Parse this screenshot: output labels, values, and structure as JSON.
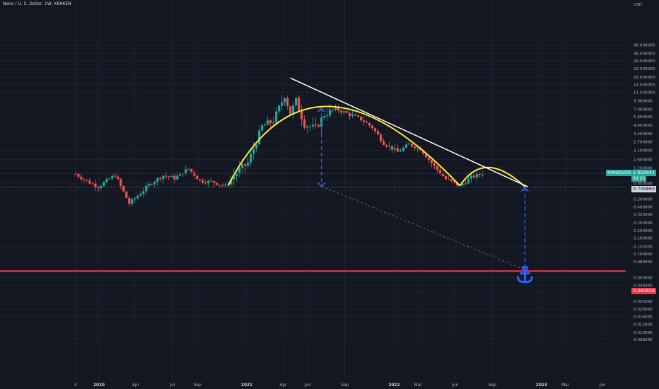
{
  "symbol_title": "Nano / U. S. Dollar, 1W, KRAKEN",
  "currency_label": "USD",
  "colors": {
    "background": "#131722",
    "grid": "#1e222d",
    "up": "#26a69a",
    "down": "#ef5350",
    "arc": "#ffeb3b",
    "trendline": "#ffffff",
    "target_line": "#f23645",
    "projection": "#2962ff"
  },
  "price_labels": {
    "symbol_badge": "NANOUSD",
    "last_price": "1.059941",
    "countdown": "6d 2h",
    "neckline_price": "0.709860",
    "target_price": "0.060828"
  },
  "chart_data": {
    "type": "candlestick",
    "y_scale": "log",
    "ylim": [
      0.008,
      60
    ],
    "y_ticks": [
      "46.000000",
      "36.000000",
      "29.000000",
      "23.000000",
      "18.000000",
      "14.500000",
      "11.500000",
      "9.000000",
      "7.000000",
      "5.600000",
      "4.400000",
      "3.400000",
      "2.700000",
      "2.100000",
      "1.600000",
      "1.250000",
      "0.800000",
      "0.640000",
      "0.500000",
      "0.400000",
      "0.320000",
      "0.250000",
      "0.200000",
      "0.160000",
      "0.125000",
      "0.100000",
      "0.080000",
      "0.050000",
      "0.040000",
      "0.032000",
      "0.025000",
      "0.020000",
      "0.016000",
      "0.012800",
      "0.010000",
      "0.008200"
    ],
    "x_ticks": [
      "4",
      "2020",
      "Apr",
      "Jul",
      "Sep",
      "2021",
      "Apr",
      "Jun",
      "Sep",
      "2022",
      "Mar",
      "Jun",
      "Sep",
      "2023",
      "Mar",
      "Jun"
    ],
    "bold_x_ticks": [
      "2020",
      "2021",
      "2022",
      "2023"
    ],
    "weekly_close_path": [
      [
        "2019-11-04",
        1.05
      ],
      [
        "2019-12-02",
        0.85
      ],
      [
        "2019-12-30",
        0.72
      ],
      [
        "2020-02-10",
        1.02
      ],
      [
        "2020-03-16",
        0.44
      ],
      [
        "2020-04-13",
        0.6
      ],
      [
        "2020-05-11",
        0.82
      ],
      [
        "2020-06-08",
        1.0
      ],
      [
        "2020-07-06",
        0.93
      ],
      [
        "2020-08-10",
        1.22
      ],
      [
        "2020-09-07",
        0.86
      ],
      [
        "2020-10-12",
        0.82
      ],
      [
        "2020-11-09",
        0.73
      ],
      [
        "2020-12-07",
        1.1
      ],
      [
        "2021-01-04",
        1.45
      ],
      [
        "2021-02-08",
        4.2
      ],
      [
        "2021-03-08",
        5.0
      ],
      [
        "2021-04-05",
        10.5
      ],
      [
        "2021-04-19",
        6.2
      ],
      [
        "2021-05-03",
        9.0
      ],
      [
        "2021-05-24",
        4.5
      ],
      [
        "2021-06-21",
        4.0
      ],
      [
        "2021-07-12",
        6.0
      ],
      [
        "2021-08-09",
        7.1
      ],
      [
        "2021-09-06",
        6.2
      ],
      [
        "2021-10-11",
        5.2
      ],
      [
        "2021-11-08",
        4.1
      ],
      [
        "2021-12-06",
        2.6
      ],
      [
        "2022-01-10",
        2.0
      ],
      [
        "2022-02-07",
        2.5
      ],
      [
        "2022-03-07",
        2.2
      ],
      [
        "2022-04-11",
        1.3
      ],
      [
        "2022-05-09",
        0.9
      ],
      [
        "2022-06-13",
        0.74
      ],
      [
        "2022-07-11",
        0.95
      ],
      [
        "2022-08-08",
        1.07
      ]
    ],
    "levels": {
      "last_price": 1.059941,
      "neckline": 0.70986,
      "target": 0.060828
    },
    "annotations": [
      {
        "type": "rounded_top_arc",
        "from": [
          "2020-11-16",
          0.75
        ],
        "to": [
          "2022-06-13",
          0.74
        ],
        "peak": [
          "2021-07-19",
          7.6
        ]
      },
      {
        "type": "small_arc",
        "from": [
          "2022-06-13",
          0.74
        ],
        "to": [
          "2022-11-21",
          0.72
        ],
        "peak": [
          "2022-08-22",
          1.27
        ]
      },
      {
        "type": "descending_trendline",
        "from": [
          "2021-04-19",
          17.5
        ],
        "to": [
          "2022-11-28",
          0.72
        ]
      },
      {
        "type": "projection_arrow",
        "from": [
          "2021-07-05",
          7.2
        ],
        "to": [
          "2021-07-05",
          0.73
        ]
      },
      {
        "type": "projection_arrow",
        "from": [
          "2022-11-21",
          0.7
        ],
        "to": [
          "2022-11-21",
          0.063
        ]
      },
      {
        "type": "dashed_guide",
        "from": [
          "2021-07-05",
          0.73
        ],
        "to": [
          "2022-11-21",
          0.063
        ]
      },
      {
        "type": "anchor_icon",
        "at": [
          "2022-11-21",
          0.05
        ]
      }
    ]
  }
}
